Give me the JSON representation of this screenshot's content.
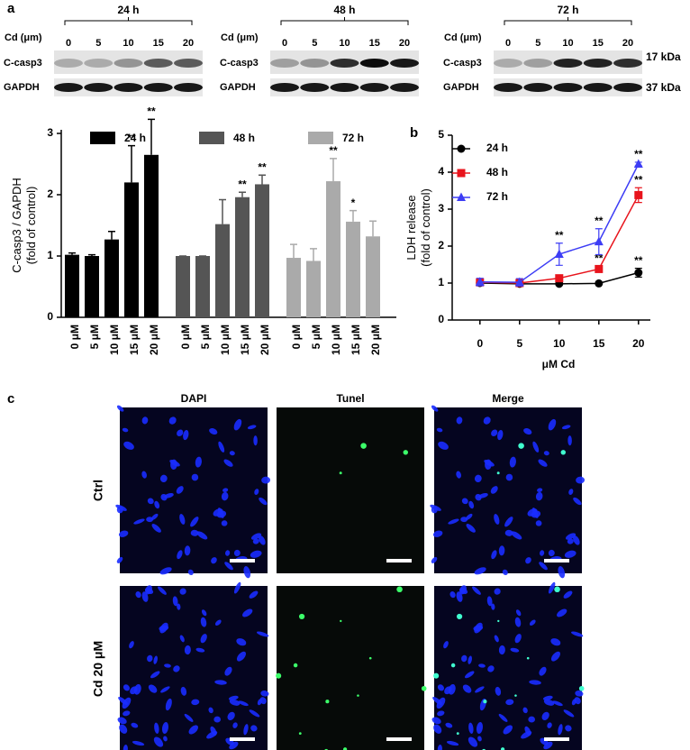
{
  "panels": {
    "a": {
      "label": "a",
      "sizes": [
        "17 kDa",
        "37 kDa"
      ],
      "blots": [
        {
          "time": "24 h",
          "dose_label": "Cd (μm)",
          "lanes": [
            0,
            5,
            10,
            15,
            20
          ],
          "rows": [
            "C-casp3",
            "GAPDH"
          ]
        },
        {
          "time": "48 h",
          "dose_label": "Cd (μm)",
          "lanes": [
            0,
            5,
            10,
            15,
            20
          ],
          "rows": [
            "C-casp3",
            "GAPDH"
          ]
        },
        {
          "time": "72 h",
          "dose_label": "Cd (μm)",
          "lanes": [
            0,
            5,
            10,
            15,
            20
          ],
          "rows": [
            "C-casp3",
            "GAPDH"
          ]
        }
      ]
    },
    "c": {
      "label": "c",
      "columns": [
        "DAPI",
        "Tunel",
        "Merge"
      ],
      "rows": [
        "Ctrl",
        "Cd 20 μM"
      ]
    }
  },
  "chart_data": [
    {
      "type": "bar",
      "ylabel": [
        "C-casp3 / GAPDH",
        "(fold of control)"
      ],
      "categories": [
        "0 μM",
        "5 μM",
        "10 μM",
        "15 μM",
        "20 μM"
      ],
      "series": [
        {
          "name": "24 h",
          "color": "#000000",
          "values": [
            1.02,
            1.0,
            1.27,
            2.2,
            2.65
          ],
          "errors": [
            0.03,
            0.02,
            0.13,
            0.6,
            0.58
          ],
          "markers": [
            null,
            null,
            null,
            "**",
            "**"
          ]
        },
        {
          "name": "48 h",
          "color": "#555555",
          "values": [
            1.0,
            1.0,
            1.52,
            1.96,
            2.17
          ],
          "errors": [
            0.0,
            0.0,
            0.4,
            0.08,
            0.15
          ],
          "markers": [
            null,
            null,
            null,
            "**",
            "**"
          ]
        },
        {
          "name": "72 h",
          "color": "#aaaaaa",
          "values": [
            0.97,
            0.92,
            2.22,
            1.56,
            1.32
          ],
          "errors": [
            0.22,
            0.2,
            0.37,
            0.18,
            0.25
          ],
          "markers": [
            null,
            null,
            "**",
            "*",
            null
          ]
        }
      ],
      "ylim": [
        0,
        3
      ],
      "yticks": [
        0,
        1,
        2,
        3
      ]
    },
    {
      "type": "line",
      "panel_label": "b",
      "xlabel": "μM Cd",
      "ylabel": [
        "LDH release",
        "(fold of control)"
      ],
      "x": [
        0,
        5,
        10,
        15,
        20
      ],
      "xlim": [
        -3.5,
        21.5
      ],
      "xticks": [
        0,
        5,
        10,
        15,
        20
      ],
      "ylim": [
        0,
        5
      ],
      "yticks": [
        0,
        1,
        2,
        3,
        4,
        5
      ],
      "series": [
        {
          "name": "24 h",
          "color": "#000000",
          "marker": "circle",
          "values": [
            1.0,
            0.98,
            0.98,
            0.99,
            1.28
          ],
          "errors": [
            0.05,
            0.05,
            0.03,
            0.03,
            0.12
          ],
          "markers": [
            null,
            null,
            null,
            null,
            "**"
          ]
        },
        {
          "name": "48 h",
          "color": "#e8141c",
          "marker": "square",
          "values": [
            1.02,
            1.0,
            1.13,
            1.38,
            3.38
          ],
          "errors": [
            0.05,
            0.05,
            0.05,
            0.08,
            0.2
          ],
          "markers": [
            null,
            null,
            null,
            "**",
            "**"
          ]
        },
        {
          "name": "72 h",
          "color": "#3d3df5",
          "marker": "triangle",
          "values": [
            1.03,
            1.02,
            1.78,
            2.12,
            4.22
          ],
          "errors": [
            0.1,
            0.1,
            0.3,
            0.35,
            0.05
          ],
          "markers": [
            null,
            null,
            "**",
            "**",
            "**"
          ]
        }
      ]
    }
  ]
}
